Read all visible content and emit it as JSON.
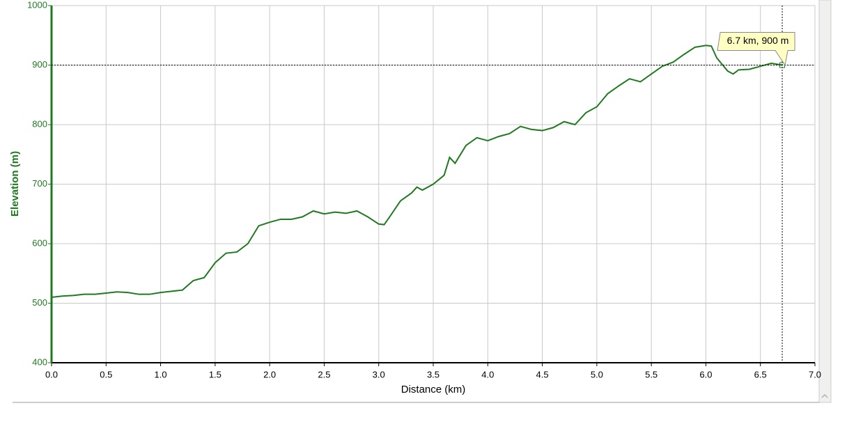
{
  "chart_data": {
    "type": "line",
    "xlabel": "Distance (km)",
    "ylabel": "Elevation (m)",
    "color": "#1f7a1f",
    "axis_color": "#1f7a1f",
    "x": [
      0.0,
      0.1,
      0.2,
      0.3,
      0.4,
      0.5,
      0.6,
      0.7,
      0.8,
      0.9,
      1.0,
      1.1,
      1.2,
      1.3,
      1.4,
      1.5,
      1.6,
      1.7,
      1.8,
      1.9,
      2.0,
      2.1,
      2.2,
      2.3,
      2.4,
      2.5,
      2.6,
      2.7,
      2.8,
      2.9,
      3.0,
      3.05,
      3.1,
      3.2,
      3.3,
      3.35,
      3.4,
      3.5,
      3.6,
      3.65,
      3.7,
      3.8,
      3.9,
      4.0,
      4.1,
      4.2,
      4.3,
      4.4,
      4.5,
      4.6,
      4.7,
      4.8,
      4.9,
      5.0,
      5.1,
      5.2,
      5.3,
      5.4,
      5.5,
      5.6,
      5.7,
      5.8,
      5.9,
      6.0,
      6.05,
      6.1,
      6.2,
      6.25,
      6.3,
      6.4,
      6.5,
      6.6,
      6.7
    ],
    "values": [
      510,
      512,
      513,
      515,
      515,
      517,
      519,
      518,
      515,
      515,
      518,
      520,
      522,
      538,
      543,
      568,
      584,
      586,
      600,
      630,
      636,
      641,
      641,
      645,
      655,
      650,
      653,
      651,
      655,
      645,
      633,
      632,
      645,
      672,
      685,
      695,
      690,
      700,
      715,
      745,
      735,
      765,
      778,
      773,
      780,
      785,
      797,
      792,
      790,
      795,
      805,
      800,
      820,
      830,
      852,
      865,
      877,
      872,
      885,
      898,
      905,
      918,
      930,
      933,
      932,
      912,
      890,
      885,
      892,
      893,
      898,
      903,
      900
    ],
    "xlim": [
      0,
      7
    ],
    "ylim": [
      400,
      1000
    ],
    "xticks": [
      {
        "value": 0,
        "label": "0.0"
      },
      0.5,
      {
        "value": 1,
        "label": "1.0"
      },
      1.5,
      {
        "value": 2,
        "label": "2.0"
      },
      2.5,
      {
        "value": 3,
        "label": "3.0"
      },
      3.5,
      {
        "value": 4,
        "label": "4.0"
      },
      4.5,
      {
        "value": 5,
        "label": "5.0"
      },
      5.5,
      {
        "value": 6,
        "label": "6.0"
      },
      6.5,
      {
        "value": 7,
        "label": "7.0"
      }
    ],
    "yticks": [
      400,
      500,
      600,
      700,
      800,
      900,
      1000
    ],
    "grid": true,
    "cursor": {
      "x": 6.7,
      "y": 900,
      "label": "6.7 km, 900 m"
    }
  }
}
